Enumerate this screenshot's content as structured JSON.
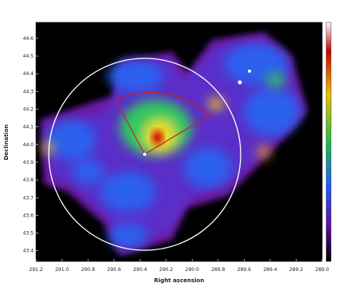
{
  "chart_data": {
    "type": "heatmap",
    "x_label": "Right ascension",
    "y_label": "Declination",
    "xlim": [
      291.2,
      289.0
    ],
    "xticks": [
      291.2,
      {
        "value": 291,
        "label": "291.0"
      },
      290.8,
      290.6,
      290.4,
      290.2,
      {
        "value": 290,
        "label": "290.0"
      },
      289.8,
      289.6,
      289.4,
      289.2,
      {
        "value": 289,
        "label": "289.0"
      }
    ],
    "ylim": [
      43.34,
      44.69
    ],
    "yticks": [
      43.4,
      43.5,
      43.6,
      43.7,
      43.8,
      43.9,
      {
        "value": 44,
        "label": "44.0"
      },
      44.1,
      44.2,
      44.3,
      44.4,
      44.5,
      44.6
    ]
  }
}
